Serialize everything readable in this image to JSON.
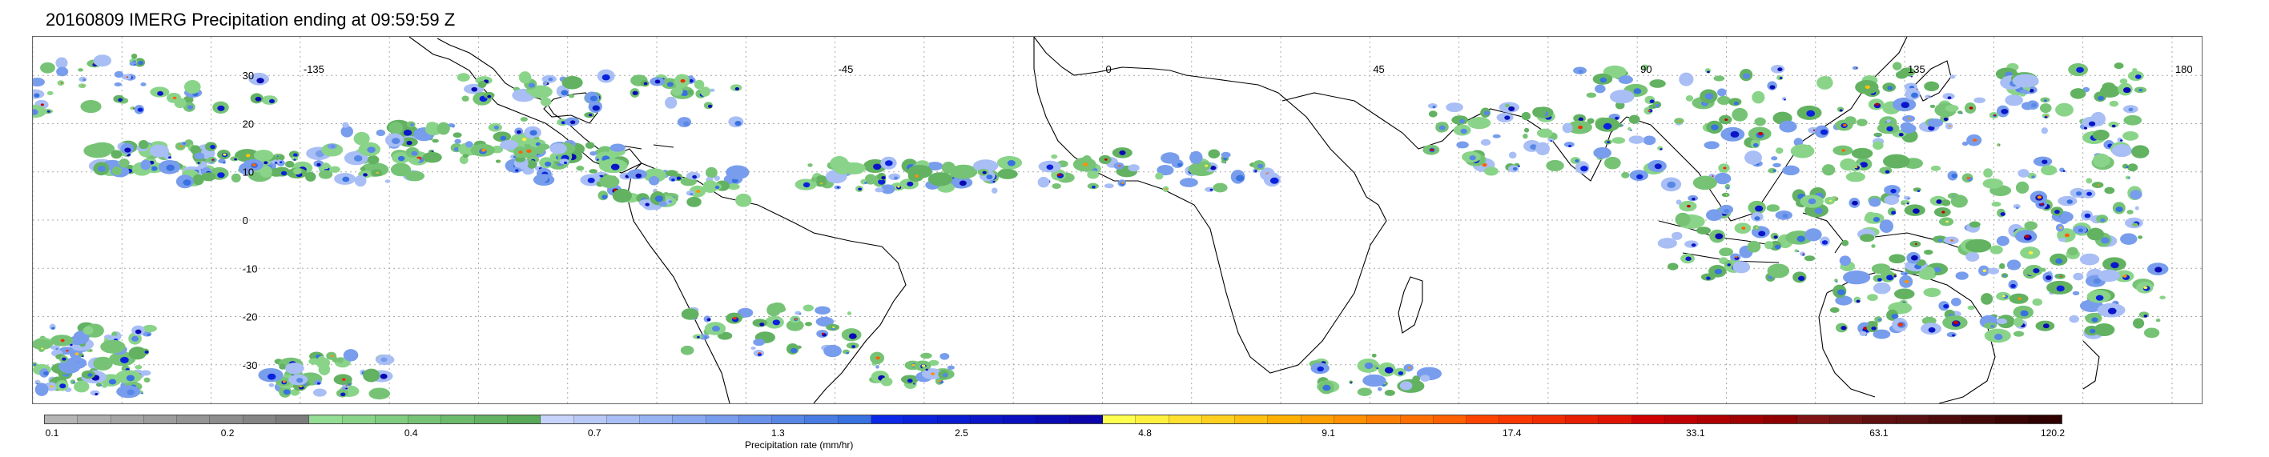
{
  "title": "20160809 IMERG Precipitation ending at 09:59:59 Z",
  "map": {
    "longitude_labels": [
      "-135",
      "-45",
      "0",
      "45",
      "90",
      "135",
      "180"
    ],
    "longitude_values": [
      -135,
      -45,
      0,
      45,
      90,
      135,
      180
    ],
    "latitude_labels": [
      "30",
      "20",
      "10",
      "0",
      "-10",
      "-20",
      "-30"
    ],
    "latitude_values": [
      30,
      20,
      10,
      0,
      -10,
      -20,
      -30
    ],
    "lon_range": [
      -180,
      185
    ],
    "lat_range": [
      -38,
      38
    ],
    "grid_style": "dotted"
  },
  "colorbar": {
    "title": "Precipitation rate (mm/hr)",
    "tick_labels": [
      "0.1",
      "0.2",
      "0.4",
      "0.7",
      "1.3",
      "2.5",
      "4.8",
      "9.1",
      "17.4",
      "33.1",
      "63.1",
      "120.2"
    ],
    "colors": [
      "#b5b5b5",
      "#adadad",
      "#a5a5a5",
      "#9d9d9d",
      "#959595",
      "#8d8d8d",
      "#858585",
      "#7d7d7d",
      "#94dd94",
      "#8ad48a",
      "#80cc80",
      "#76c376",
      "#6cbb6c",
      "#62b262",
      "#58aa58",
      "#c7d3fa",
      "#b8c9f8",
      "#a8bef5",
      "#98b3f2",
      "#88a8ef",
      "#789dec",
      "#6892e9",
      "#5887e6",
      "#487ce3",
      "#3871e0",
      "#0a28e6",
      "#0a22dc",
      "#0a1cd2",
      "#0a16c8",
      "#0a10be",
      "#0a0ab4",
      "#0a04aa",
      "#ffff50",
      "#fff040",
      "#ffe030",
      "#ffd020",
      "#ffc010",
      "#ffb000",
      "#ffa000",
      "#ff9000",
      "#ff8000",
      "#ff7000",
      "#ff6000",
      "#ff4400",
      "#f83800",
      "#f02c00",
      "#e82000",
      "#e01400",
      "#d00000",
      "#c00000",
      "#b00000",
      "#a00000",
      "#900000",
      "#801414",
      "#701414",
      "#601010",
      "#581010",
      "#4e0c0c",
      "#440808",
      "#3a0404",
      "#300000"
    ]
  }
}
